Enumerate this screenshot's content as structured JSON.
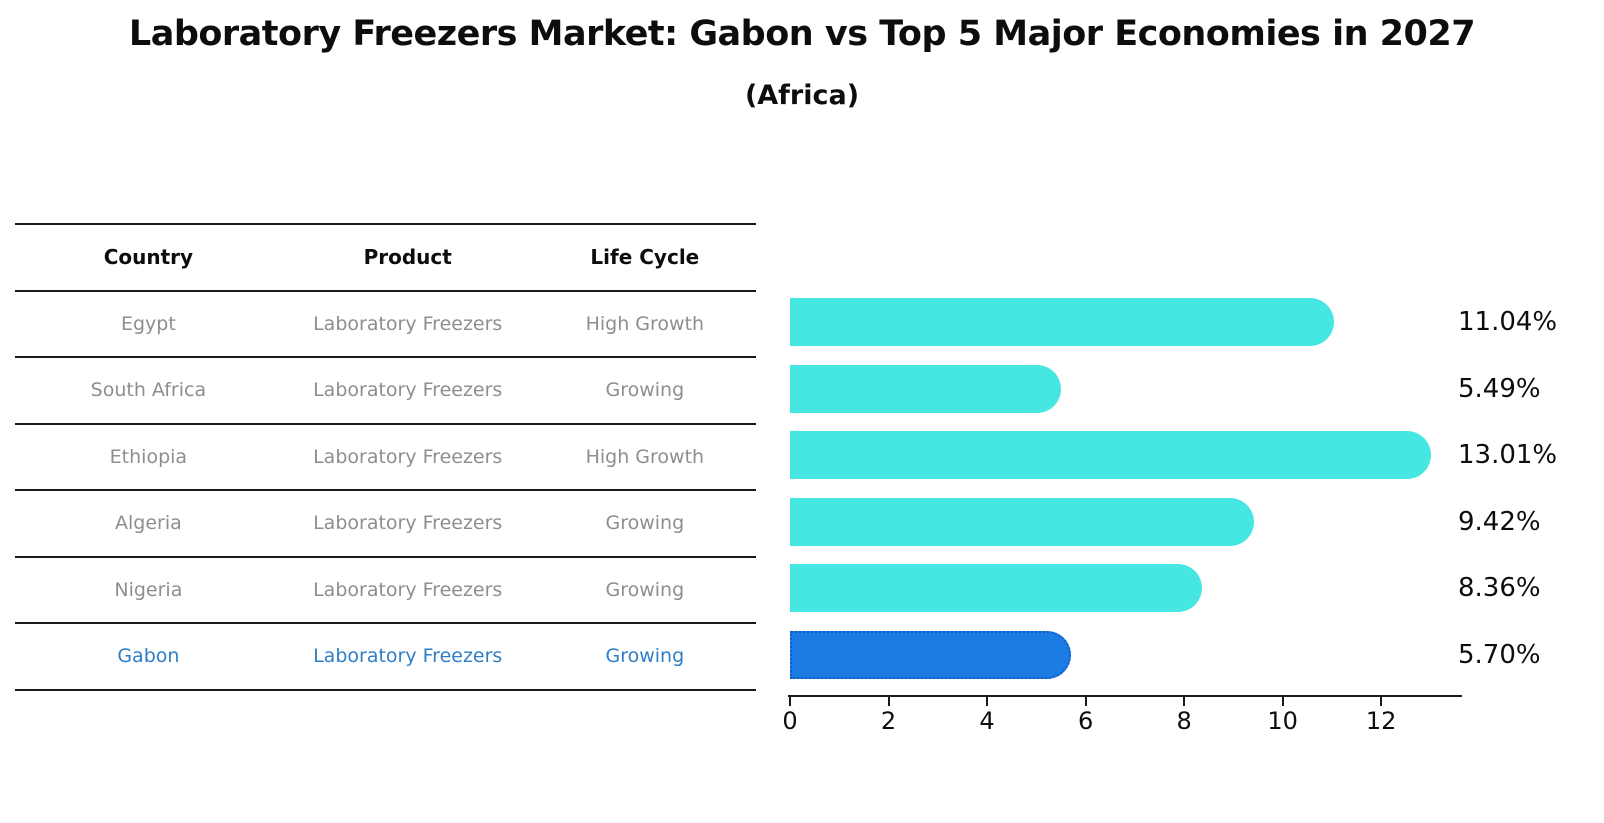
{
  "chart": {
    "title": "Laboratory Freezers Market: Gabon vs Top 5 Major Economies in 2027",
    "subtitle": "(Africa)"
  },
  "table": {
    "headers": [
      "Country",
      "Product",
      "Life Cycle"
    ],
    "rows": [
      {
        "country": "Egypt",
        "product": "Laboratory Freezers",
        "life_cycle": "High Growth",
        "highlight": false
      },
      {
        "country": "South Africa",
        "product": "Laboratory Freezers",
        "life_cycle": "Growing",
        "highlight": false
      },
      {
        "country": "Ethiopia",
        "product": "Laboratory Freezers",
        "life_cycle": "High Growth",
        "highlight": false
      },
      {
        "country": "Algeria",
        "product": "Laboratory Freezers",
        "life_cycle": "Growing",
        "highlight": false
      },
      {
        "country": "Nigeria",
        "product": "Laboratory Freezers",
        "life_cycle": "Growing",
        "highlight": false
      },
      {
        "country": "Gabon",
        "product": "Laboratory Freezers",
        "life_cycle": "Growing",
        "highlight": true
      }
    ]
  },
  "chart_data": {
    "type": "bar",
    "orientation": "horizontal",
    "title": "Laboratory Freezers Market: Gabon vs Top 5 Major Economies in 2027",
    "subtitle": "(Africa)",
    "categories": [
      "Egypt",
      "South Africa",
      "Ethiopia",
      "Algeria",
      "Nigeria",
      "Gabon"
    ],
    "values": [
      11.04,
      5.49,
      13.01,
      9.42,
      8.36,
      5.7
    ],
    "value_labels": [
      "11.04%",
      "5.49%",
      "13.01%",
      "9.42%",
      "8.36%",
      "5.70%"
    ],
    "xlim": [
      0,
      13.6
    ],
    "xticks": [
      0,
      2,
      4,
      6,
      8,
      10,
      12
    ],
    "grid": false,
    "legend": false,
    "highlight_index": 5
  },
  "colors": {
    "bar": "#46E6E2",
    "highlight_bar": "#1D7CE3",
    "highlight_border": "#0D5FC8",
    "highlight_text": "#2E7EC8",
    "row_text": "#8E8E8E",
    "header_text": "#0d0d0d",
    "axis": "#1a1a1a"
  }
}
